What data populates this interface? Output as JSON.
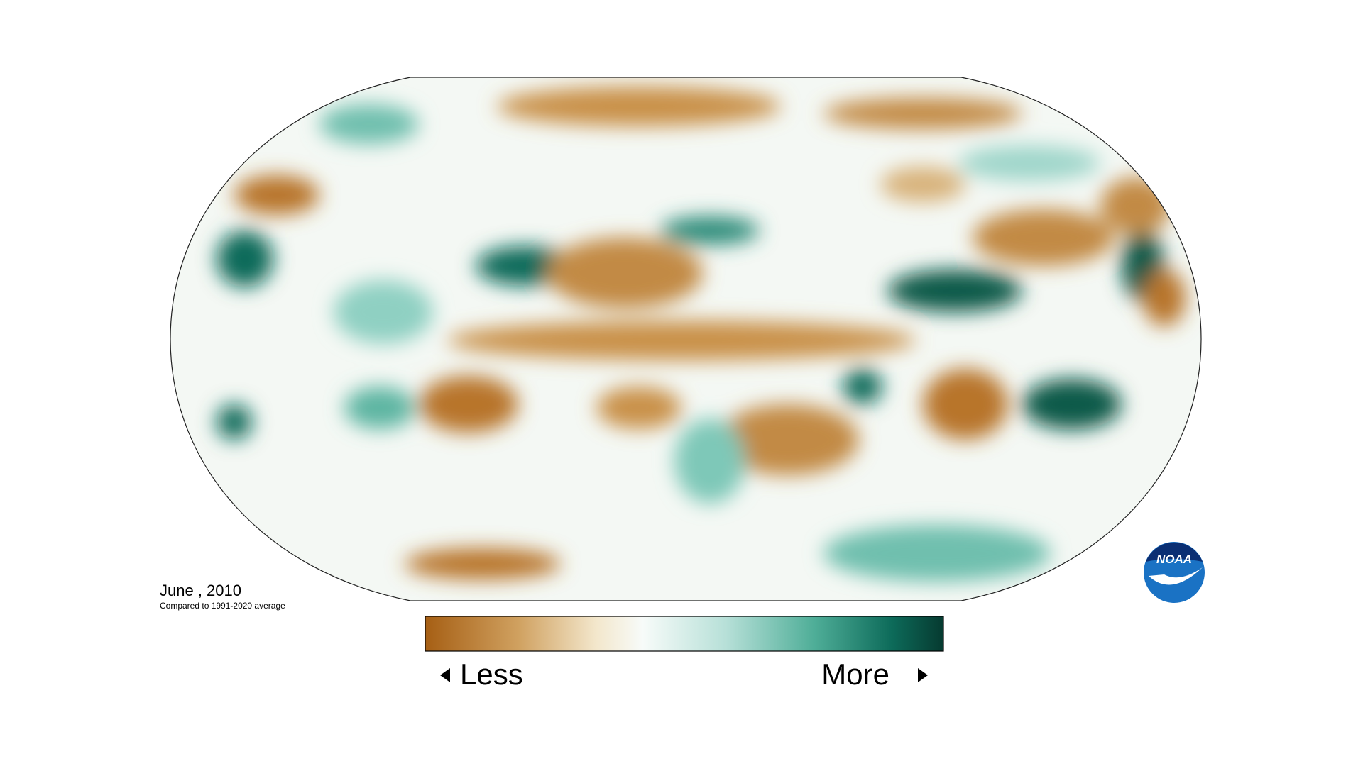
{
  "map": {
    "date_label": "June , 2010",
    "subtitle": "Compared to 1991-2020 average",
    "legend": {
      "low": "Less",
      "high": "More"
    }
  },
  "logo": {
    "text": "NOAA"
  }
}
